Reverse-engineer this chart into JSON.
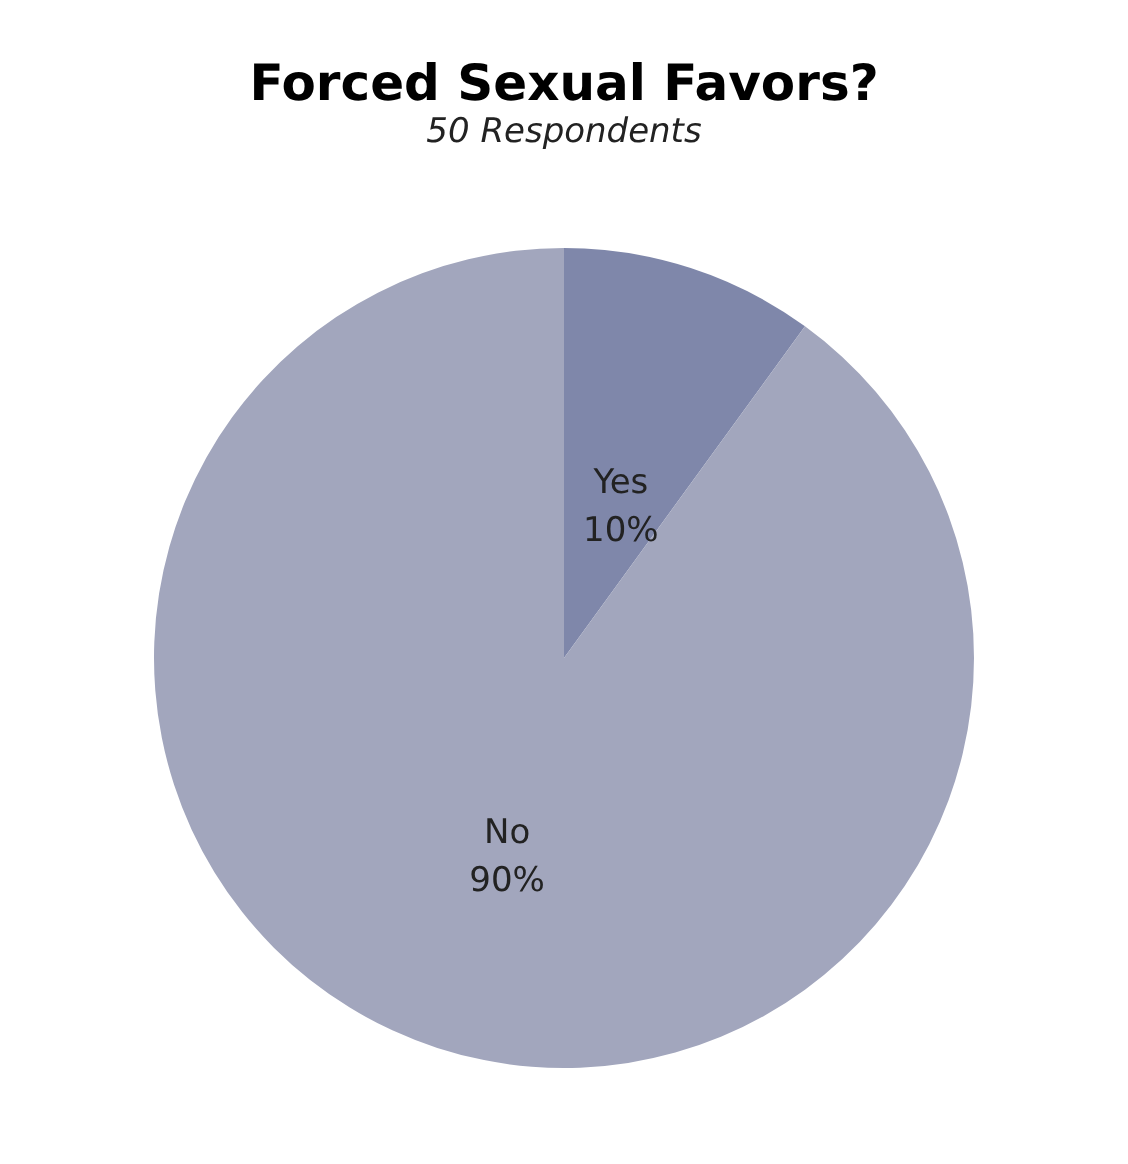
{
  "chart_data": {
    "type": "pie",
    "title": "Forced Sexual Favors?",
    "subtitle": "50 Respondents",
    "categories": [
      "Yes",
      "No"
    ],
    "values": [
      10,
      90
    ],
    "value_labels": [
      "10%",
      "90%"
    ],
    "colors": [
      "#7f87aa",
      "#a2a6bd"
    ],
    "legend": false
  }
}
